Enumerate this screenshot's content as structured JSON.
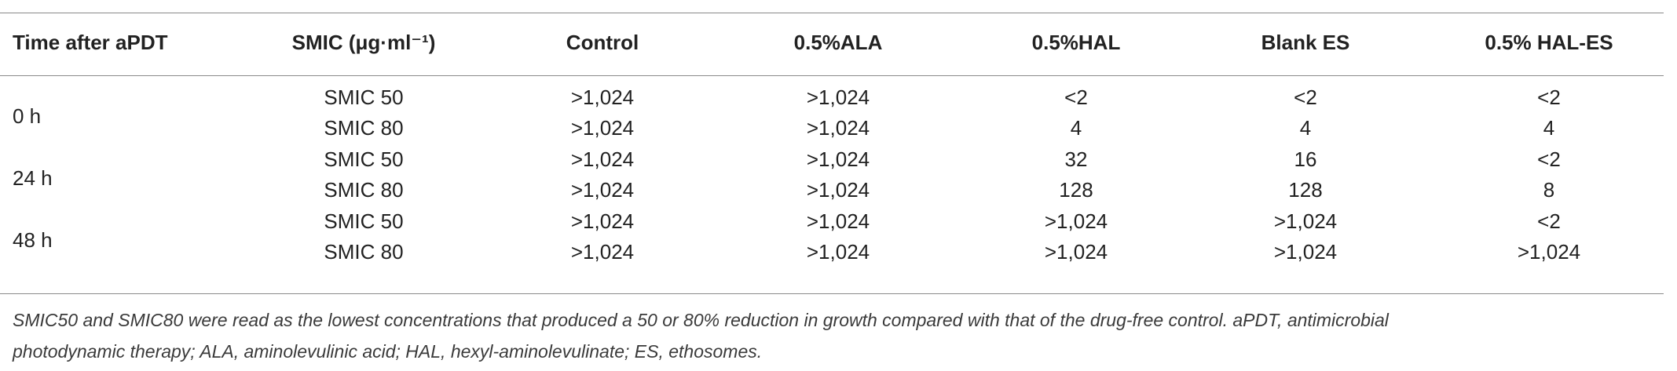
{
  "header": {
    "columns": [
      "Time after aPDT",
      "SMIC (μg·ml⁻¹)",
      "Control",
      "0.5%ALA",
      "0.5%HAL",
      "Blank ES",
      "0.5% HAL-ES"
    ]
  },
  "groups": [
    {
      "time": "0 h",
      "rows": [
        {
          "smic": "SMIC 50",
          "control": ">1,024",
          "ala": ">1,024",
          "hal": "<2",
          "blank_es": "<2",
          "hal_es": "<2"
        },
        {
          "smic": "SMIC 80",
          "control": ">1,024",
          "ala": ">1,024",
          "hal": "4",
          "blank_es": "4",
          "hal_es": "4"
        }
      ]
    },
    {
      "time": "24 h",
      "rows": [
        {
          "smic": "SMIC 50",
          "control": ">1,024",
          "ala": ">1,024",
          "hal": "32",
          "blank_es": "16",
          "hal_es": "<2"
        },
        {
          "smic": "SMIC 80",
          "control": ">1,024",
          "ala": ">1,024",
          "hal": "128",
          "blank_es": "128",
          "hal_es": "8"
        }
      ]
    },
    {
      "time": "48 h",
      "rows": [
        {
          "smic": "SMIC 50",
          "control": ">1,024",
          "ala": ">1,024",
          "hal": ">1,024",
          "blank_es": ">1,024",
          "hal_es": "<2"
        },
        {
          "smic": "SMIC 80",
          "control": ">1,024",
          "ala": ">1,024",
          "hal": ">1,024",
          "blank_es": ">1,024",
          "hal_es": ">1,024"
        }
      ]
    }
  ],
  "footnote": {
    "line1": "SMIC50 and SMIC80 were read as the lowest concentrations that produced a 50 or 80% reduction in growth compared with that of the drug-free control. aPDT, antimicrobial",
    "line2": "photodynamic therapy; ALA, aminolevulinic acid; HAL, hexyl-aminolevulinate; ES, ethosomes."
  }
}
